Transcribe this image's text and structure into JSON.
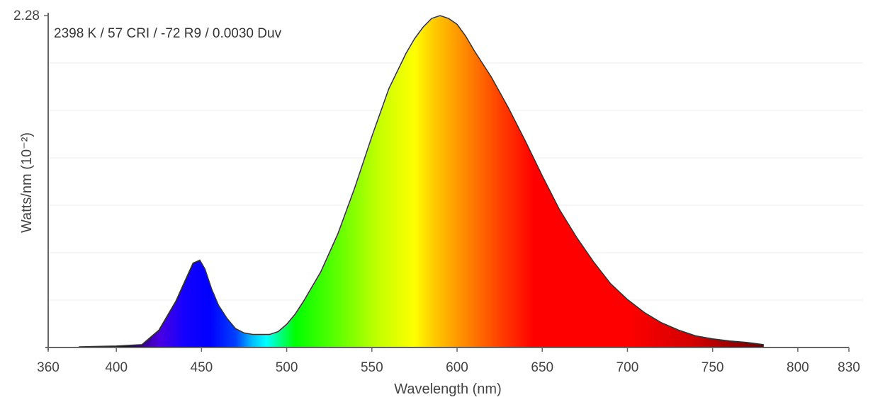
{
  "chart_data": {
    "type": "area",
    "annotation": "2398 K / 57 CRI / -72 R9 / 0.0030 Duv",
    "xlabel": "Wavelength (nm)",
    "ylabel": "Watts/nm (10⁻²)",
    "xlim": [
      360,
      830
    ],
    "ylim": [
      0,
      2.28
    ],
    "x_ticks": [
      "360",
      "400",
      "450",
      "500",
      "550",
      "600",
      "650",
      "700",
      "750",
      "800",
      "830"
    ],
    "y_ticks": [
      "2.28"
    ],
    "grid": "horizontal",
    "fill": "visible-spectrum colors by wavelength",
    "series": [
      {
        "x": [
          378,
          400,
          415,
          425,
          435,
          440,
          445,
          449,
          452,
          456,
          460,
          465,
          470,
          475,
          480,
          485,
          490,
          495,
          500,
          505,
          510,
          520,
          530,
          540,
          550,
          560,
          570,
          575,
          580,
          585,
          590,
          595,
          600,
          605,
          610,
          620,
          630,
          640,
          650,
          660,
          670,
          680,
          690,
          700,
          710,
          720,
          730,
          740,
          750,
          760,
          770,
          780
        ],
        "y": [
          0.005,
          0.01,
          0.02,
          0.12,
          0.32,
          0.45,
          0.58,
          0.6,
          0.54,
          0.4,
          0.29,
          0.2,
          0.13,
          0.1,
          0.09,
          0.09,
          0.09,
          0.11,
          0.16,
          0.23,
          0.32,
          0.52,
          0.78,
          1.1,
          1.45,
          1.78,
          2.02,
          2.12,
          2.2,
          2.26,
          2.28,
          2.26,
          2.22,
          2.14,
          2.04,
          1.86,
          1.65,
          1.42,
          1.18,
          0.95,
          0.76,
          0.59,
          0.44,
          0.33,
          0.24,
          0.17,
          0.12,
          0.08,
          0.06,
          0.045,
          0.035,
          0.02
        ]
      }
    ]
  }
}
